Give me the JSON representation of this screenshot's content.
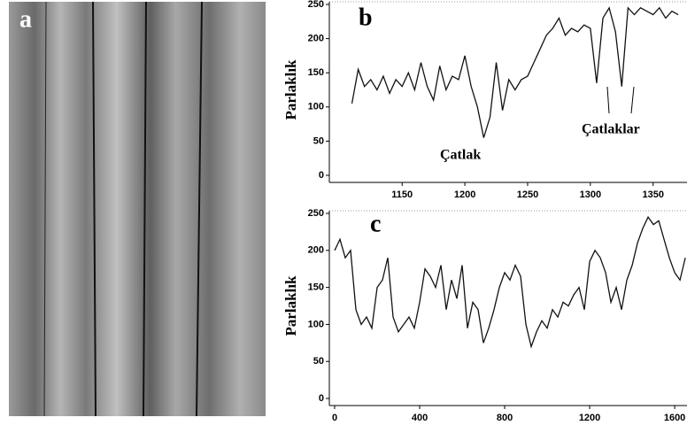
{
  "panel_a": {
    "label": "a"
  },
  "chart_data": [
    {
      "type": "line",
      "panel": "b",
      "ylabel": "Parlaklık",
      "annotations": [
        "Çatlak",
        "Çatlaklar"
      ],
      "x": [
        1110,
        1115,
        1120,
        1125,
        1130,
        1135,
        1140,
        1145,
        1150,
        1155,
        1160,
        1165,
        1170,
        1175,
        1180,
        1185,
        1190,
        1195,
        1200,
        1205,
        1210,
        1215,
        1220,
        1225,
        1230,
        1235,
        1240,
        1245,
        1250,
        1255,
        1260,
        1265,
        1270,
        1275,
        1280,
        1285,
        1290,
        1295,
        1300,
        1305,
        1310,
        1315,
        1320,
        1325,
        1330,
        1335,
        1340,
        1345,
        1350,
        1355,
        1360,
        1365,
        1370
      ],
      "series": [
        {
          "color": "#111111",
          "values": [
            105,
            155,
            130,
            140,
            125,
            145,
            120,
            140,
            130,
            150,
            125,
            165,
            130,
            110,
            160,
            125,
            145,
            140,
            175,
            130,
            100,
            55,
            85,
            165,
            95,
            140,
            125,
            140,
            145,
            165,
            185,
            205,
            215,
            230,
            205,
            215,
            210,
            220,
            215,
            135,
            230,
            245,
            210,
            130,
            245,
            235,
            245,
            240,
            235,
            245,
            230,
            240,
            235
          ]
        }
      ],
      "xlim": [
        1092,
        1377
      ],
      "ylim": [
        0,
        250
      ],
      "xticks": [
        1150,
        1200,
        1250,
        1300,
        1350
      ],
      "yticks": [
        0,
        50,
        100,
        150,
        200,
        250
      ]
    },
    {
      "type": "line",
      "panel": "c",
      "ylabel": "Parlaklık",
      "x": [
        0,
        25,
        50,
        75,
        100,
        125,
        150,
        175,
        200,
        225,
        250,
        275,
        300,
        325,
        350,
        375,
        400,
        425,
        450,
        475,
        500,
        525,
        550,
        575,
        600,
        625,
        650,
        675,
        700,
        725,
        750,
        775,
        800,
        825,
        850,
        875,
        900,
        925,
        950,
        975,
        1000,
        1025,
        1050,
        1075,
        1100,
        1125,
        1150,
        1175,
        1200,
        1225,
        1250,
        1275,
        1300,
        1325,
        1350,
        1375,
        1400,
        1425,
        1450,
        1475,
        1500,
        1525,
        1550,
        1575,
        1600,
        1625,
        1650
      ],
      "series": [
        {
          "color": "#111111",
          "values": [
            200,
            215,
            190,
            200,
            120,
            100,
            110,
            95,
            150,
            160,
            190,
            110,
            90,
            100,
            110,
            95,
            130,
            175,
            165,
            150,
            180,
            120,
            160,
            135,
            180,
            95,
            130,
            120,
            75,
            95,
            120,
            150,
            170,
            160,
            180,
            165,
            100,
            70,
            90,
            105,
            95,
            120,
            110,
            130,
            125,
            140,
            150,
            120,
            185,
            200,
            190,
            170,
            130,
            150,
            120,
            160,
            180,
            210,
            230,
            245,
            235,
            240,
            215,
            190,
            170,
            160,
            190
          ]
        }
      ],
      "xlim": [
        -25,
        1658
      ],
      "ylim": [
        0,
        250
      ],
      "xticks": [
        0,
        400,
        800,
        1200,
        1600
      ],
      "yticks": [
        0,
        50,
        100,
        150,
        200,
        250
      ]
    }
  ]
}
